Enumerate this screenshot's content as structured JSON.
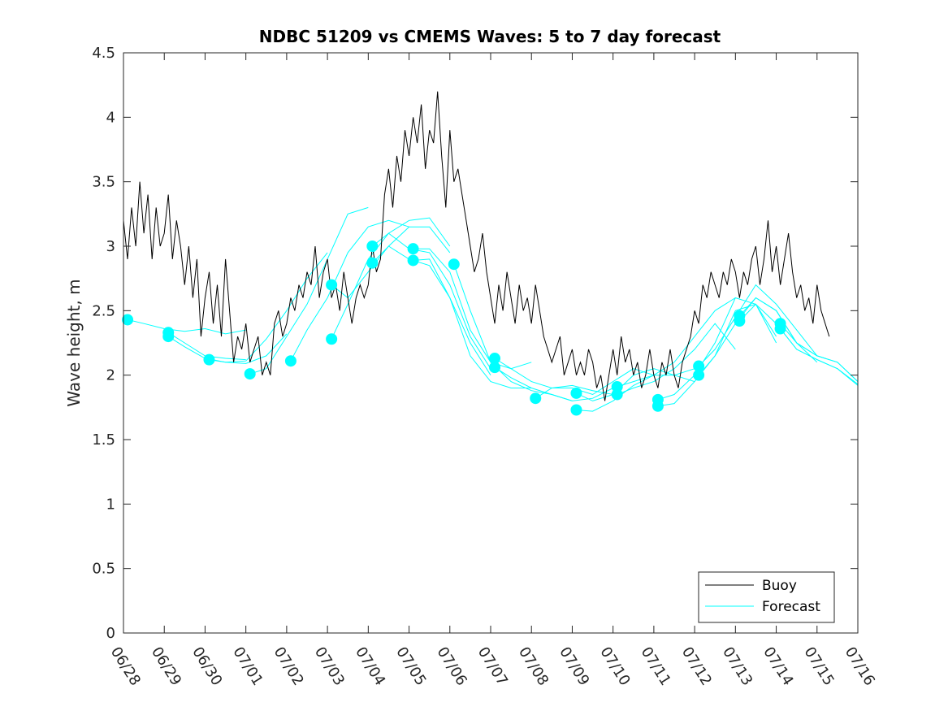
{
  "chart_data": {
    "type": "line",
    "title": "NDBC 51209 vs CMEMS Waves: 5 to 7 day forecast",
    "ylabel": "Wave height, m",
    "xlabel": "",
    "xlim": [
      0,
      18
    ],
    "ylim": [
      0,
      4.5
    ],
    "x_tick_labels": [
      "06/28",
      "06/29",
      "06/30",
      "07/01",
      "07/02",
      "07/03",
      "07/04",
      "07/05",
      "07/06",
      "07/07",
      "07/08",
      "07/09",
      "07/10",
      "07/11",
      "07/12",
      "07/13",
      "07/14",
      "07/15",
      "07/16"
    ],
    "y_tick_labels": [
      "0",
      "0.5",
      "1",
      "1.5",
      "2",
      "2.5",
      "3",
      "3.5",
      "4",
      "4.5"
    ],
    "y_ticks": [
      0,
      0.5,
      1,
      1.5,
      2,
      2.5,
      3,
      3.5,
      4,
      4.5
    ],
    "grid": false,
    "legend_position": "bottom-right",
    "colors": {
      "buoy": "#000000",
      "forecast": "#00ffff"
    },
    "series": [
      {
        "name": "Buoy",
        "color": "#000000",
        "x": [
          0,
          0.1,
          0.2,
          0.3,
          0.4,
          0.5,
          0.6,
          0.7,
          0.8,
          0.9,
          1.0,
          1.1,
          1.2,
          1.3,
          1.4,
          1.5,
          1.6,
          1.7,
          1.8,
          1.9,
          2.0,
          2.1,
          2.2,
          2.3,
          2.4,
          2.5,
          2.6,
          2.7,
          2.8,
          2.9,
          3.0,
          3.1,
          3.2,
          3.3,
          3.4,
          3.5,
          3.6,
          3.7,
          3.8,
          3.9,
          4.0,
          4.1,
          4.2,
          4.3,
          4.4,
          4.5,
          4.6,
          4.7,
          4.8,
          4.9,
          5.0,
          5.1,
          5.2,
          5.3,
          5.4,
          5.5,
          5.6,
          5.7,
          5.8,
          5.9,
          6.0,
          6.1,
          6.2,
          6.3,
          6.4,
          6.5,
          6.6,
          6.7,
          6.8,
          6.9,
          7.0,
          7.1,
          7.2,
          7.3,
          7.4,
          7.5,
          7.6,
          7.7,
          7.8,
          7.9,
          8.0,
          8.1,
          8.2,
          8.3,
          8.4,
          8.5,
          8.6,
          8.7,
          8.8,
          8.9,
          9.0,
          9.1,
          9.2,
          9.3,
          9.4,
          9.5,
          9.6,
          9.7,
          9.8,
          9.9,
          10.0,
          10.1,
          10.2,
          10.3,
          10.4,
          10.5,
          10.6,
          10.7,
          10.8,
          10.9,
          11.0,
          11.1,
          11.2,
          11.3,
          11.4,
          11.5,
          11.6,
          11.7,
          11.8,
          11.9,
          12.0,
          12.1,
          12.2,
          12.3,
          12.4,
          12.5,
          12.6,
          12.7,
          12.8,
          12.9,
          13.0,
          13.1,
          13.2,
          13.3,
          13.4,
          13.5,
          13.6,
          13.7,
          13.8,
          13.9,
          14.0,
          14.1,
          14.2,
          14.3,
          14.4,
          14.5,
          14.6,
          14.7,
          14.8,
          14.9,
          15.0,
          15.1,
          15.2,
          15.3,
          15.4,
          15.5,
          15.6,
          15.7,
          15.8,
          15.9,
          16.0,
          16.1,
          16.2,
          16.3,
          16.4,
          16.5,
          16.6,
          16.7,
          16.8,
          16.9,
          17.0,
          17.1,
          17.2,
          17.3
        ],
        "y": [
          3.2,
          2.9,
          3.3,
          3.0,
          3.5,
          3.1,
          3.4,
          2.9,
          3.3,
          3.0,
          3.1,
          3.4,
          2.9,
          3.2,
          3.0,
          2.7,
          3.0,
          2.6,
          2.9,
          2.3,
          2.6,
          2.8,
          2.4,
          2.7,
          2.3,
          2.9,
          2.5,
          2.1,
          2.3,
          2.2,
          2.4,
          2.1,
          2.2,
          2.3,
          2.0,
          2.1,
          2.0,
          2.4,
          2.5,
          2.3,
          2.4,
          2.6,
          2.5,
          2.7,
          2.6,
          2.8,
          2.7,
          3.0,
          2.6,
          2.8,
          2.9,
          2.6,
          2.7,
          2.5,
          2.8,
          2.6,
          2.4,
          2.6,
          2.7,
          2.6,
          2.7,
          3.0,
          2.8,
          2.9,
          3.4,
          3.6,
          3.3,
          3.7,
          3.5,
          3.9,
          3.7,
          4.0,
          3.8,
          4.1,
          3.6,
          3.9,
          3.8,
          4.2,
          3.7,
          3.3,
          3.9,
          3.5,
          3.6,
          3.4,
          3.2,
          3.0,
          2.8,
          2.9,
          3.1,
          2.8,
          2.6,
          2.4,
          2.7,
          2.5,
          2.8,
          2.6,
          2.4,
          2.7,
          2.5,
          2.6,
          2.4,
          2.7,
          2.5,
          2.3,
          2.2,
          2.1,
          2.2,
          2.3,
          2.0,
          2.1,
          2.2,
          2.0,
          2.1,
          2.0,
          2.2,
          2.1,
          1.9,
          2.0,
          1.8,
          2.0,
          2.2,
          2.0,
          2.3,
          2.1,
          2.2,
          2.0,
          2.1,
          1.9,
          2.0,
          2.2,
          2.0,
          1.9,
          2.1,
          2.0,
          2.2,
          2.0,
          1.9,
          2.1,
          2.2,
          2.3,
          2.5,
          2.4,
          2.7,
          2.6,
          2.8,
          2.7,
          2.6,
          2.8,
          2.7,
          2.9,
          2.8,
          2.6,
          2.8,
          2.7,
          2.9,
          3.0,
          2.7,
          2.9,
          3.2,
          2.8,
          3.0,
          2.7,
          2.9,
          3.1,
          2.8,
          2.6,
          2.7,
          2.5,
          2.6,
          2.4,
          2.7,
          2.5,
          2.4,
          2.3
        ]
      },
      {
        "name": "Forecast",
        "color": "#00ffff",
        "segments": [
          {
            "x": [
              0.1,
              0.5,
              1.0,
              1.5,
              2.0,
              2.5,
              3.0
            ],
            "y": [
              2.43,
              2.4,
              2.36,
              2.34,
              2.36,
              2.32,
              2.35
            ]
          },
          {
            "x": [
              1.1,
              1.5,
              2.0,
              2.5,
              3.0
            ],
            "y": [
              2.33,
              2.25,
              2.15,
              2.13,
              2.12
            ]
          },
          {
            "x": [
              1.1,
              1.5,
              2.0,
              2.5,
              3.0,
              3.5,
              4.0
            ],
            "y": [
              2.3,
              2.22,
              2.13,
              2.1,
              2.09,
              2.15,
              2.32
            ]
          },
          {
            "x": [
              2.1,
              2.5,
              3.0,
              3.5,
              4.0,
              4.5,
              5.0
            ],
            "y": [
              2.12,
              2.1,
              2.11,
              2.28,
              2.5,
              2.75,
              2.95
            ]
          },
          {
            "x": [
              3.1,
              3.5,
              4.0,
              4.5,
              5.0,
              5.5,
              6.0
            ],
            "y": [
              2.01,
              2.05,
              2.3,
              2.55,
              2.9,
              3.25,
              3.3
            ]
          },
          {
            "x": [
              4.1,
              4.5,
              5.0,
              5.5,
              6.0,
              6.5,
              7.0
            ],
            "y": [
              2.11,
              2.35,
              2.6,
              2.95,
              3.15,
              3.2,
              3.15
            ]
          },
          {
            "x": [
              5.1,
              5.5,
              6.0,
              6.5,
              7.0,
              7.5,
              8.0
            ],
            "y": [
              2.28,
              2.55,
              2.9,
              3.1,
              3.2,
              3.22,
              3.0
            ]
          },
          {
            "x": [
              5.1,
              5.5,
              6.0,
              6.5,
              7.0,
              7.5,
              8.0
            ],
            "y": [
              2.7,
              2.6,
              2.8,
              3.0,
              3.15,
              3.15,
              2.95
            ]
          },
          {
            "x": [
              6.1,
              6.5,
              7.0,
              7.5,
              8.0,
              8.5,
              9.0
            ],
            "y": [
              3.0,
              3.1,
              2.98,
              2.95,
              2.7,
              2.3,
              2.05
            ]
          },
          {
            "x": [
              6.1,
              6.5,
              7.0,
              7.5,
              8.0,
              8.5,
              9.0
            ],
            "y": [
              2.87,
              3.0,
              2.9,
              2.85,
              2.6,
              2.25,
              2.0
            ]
          },
          {
            "x": [
              7.1,
              7.5,
              8.0,
              8.5,
              9.0,
              9.5,
              10.0
            ],
            "y": [
              2.98,
              2.98,
              2.8,
              2.35,
              2.1,
              2.05,
              2.1
            ]
          },
          {
            "x": [
              7.1,
              7.5,
              8.0,
              8.5,
              9.0,
              9.5,
              10.0
            ],
            "y": [
              2.89,
              2.9,
              2.6,
              2.15,
              1.95,
              1.9,
              1.9
            ]
          },
          {
            "x": [
              8.1,
              8.5,
              9.0,
              9.5,
              10.0,
              10.5,
              11.0
            ],
            "y": [
              2.86,
              2.5,
              2.1,
              1.95,
              1.88,
              1.85,
              1.8
            ]
          },
          {
            "x": [
              9.1,
              9.5,
              10.0,
              10.5,
              11.0,
              11.5,
              12.0
            ],
            "y": [
              2.13,
              2.05,
              1.95,
              1.9,
              1.92,
              1.88,
              1.85
            ]
          },
          {
            "x": [
              9.1,
              9.5,
              10.0,
              10.5,
              11.0,
              11.5,
              12.0
            ],
            "y": [
              2.06,
              1.98,
              1.9,
              1.85,
              1.8,
              1.82,
              1.9
            ]
          },
          {
            "x": [
              10.1,
              10.5,
              11.0,
              11.5,
              12.0,
              12.5,
              13.0
            ],
            "y": [
              1.82,
              1.9,
              1.9,
              1.85,
              1.95,
              2.05,
              2.0
            ]
          },
          {
            "x": [
              11.1,
              11.5,
              12.0,
              12.5,
              13.0,
              13.5,
              14.0
            ],
            "y": [
              1.86,
              1.8,
              1.85,
              2.0,
              2.05,
              2.0,
              2.05
            ]
          },
          {
            "x": [
              11.1,
              11.5,
              12.0,
              12.5,
              13.0,
              13.5,
              14.0
            ],
            "y": [
              1.73,
              1.72,
              1.8,
              1.92,
              2.0,
              2.0,
              1.95
            ]
          },
          {
            "x": [
              12.1,
              12.5,
              13.0,
              13.5,
              14.0,
              14.5,
              15.0
            ],
            "y": [
              1.91,
              1.95,
              2.0,
              2.1,
              2.3,
              2.5,
              2.6
            ]
          },
          {
            "x": [
              12.1,
              12.5,
              13.0,
              13.5,
              14.0,
              14.5,
              15.0
            ],
            "y": [
              1.85,
              1.9,
              1.95,
              2.05,
              2.2,
              2.4,
              2.2
            ]
          },
          {
            "x": [
              13.1,
              13.5,
              14.0,
              14.5,
              15.0,
              15.5,
              16.0
            ],
            "y": [
              1.81,
              1.85,
              2.0,
              2.25,
              2.6,
              2.55,
              2.3
            ]
          },
          {
            "x": [
              13.1,
              13.5,
              14.0,
              14.5,
              15.0,
              15.5,
              16.0
            ],
            "y": [
              1.76,
              1.78,
              1.95,
              2.15,
              2.5,
              2.55,
              2.25
            ]
          },
          {
            "x": [
              14.1,
              14.5,
              15.0,
              15.5,
              16.0,
              16.5,
              17.0
            ],
            "y": [
              2.07,
              2.2,
              2.45,
              2.7,
              2.55,
              2.35,
              2.15
            ]
          },
          {
            "x": [
              14.1,
              14.5,
              15.0,
              15.5,
              16.0,
              16.5,
              17.0
            ],
            "y": [
              2.0,
              2.15,
              2.4,
              2.6,
              2.5,
              2.25,
              2.1
            ]
          },
          {
            "x": [
              15.1,
              15.5,
              16.0,
              16.5,
              17.0,
              17.5,
              18.0
            ],
            "y": [
              2.46,
              2.6,
              2.5,
              2.25,
              2.15,
              2.1,
              1.95
            ]
          },
          {
            "x": [
              15.1,
              15.5,
              16.0,
              16.5,
              17.0,
              17.5,
              18.0
            ],
            "y": [
              2.42,
              2.55,
              2.4,
              2.2,
              2.12,
              2.05,
              1.92
            ]
          },
          {
            "x": [
              16.1,
              16.5,
              17.0,
              17.5,
              18.0
            ],
            "y": [
              2.4,
              2.25,
              2.15,
              2.1,
              1.95
            ]
          },
          {
            "x": [
              16.1,
              16.5,
              17.0,
              17.5,
              18.0
            ],
            "y": [
              2.36,
              2.2,
              2.12,
              2.05,
              1.93
            ]
          }
        ],
        "markers": {
          "x": [
            0.1,
            1.1,
            1.1,
            2.1,
            3.1,
            4.1,
            5.1,
            5.1,
            6.1,
            6.1,
            7.1,
            7.1,
            8.1,
            9.1,
            9.1,
            10.1,
            11.1,
            11.1,
            12.1,
            12.1,
            13.1,
            13.1,
            14.1,
            14.1,
            15.1,
            15.1,
            16.1,
            16.1
          ],
          "y": [
            2.43,
            2.33,
            2.3,
            2.12,
            2.01,
            2.11,
            2.28,
            2.7,
            3.0,
            2.87,
            2.98,
            2.89,
            2.86,
            2.13,
            2.06,
            1.82,
            1.86,
            1.73,
            1.91,
            1.85,
            1.81,
            1.76,
            2.07,
            2.0,
            2.46,
            2.42,
            2.4,
            2.36
          ]
        }
      }
    ]
  }
}
